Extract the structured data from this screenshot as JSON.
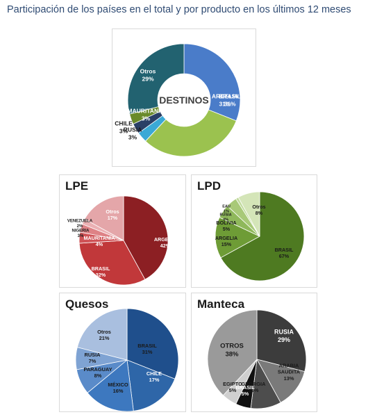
{
  "page": {
    "title": "Participación de los países en el total y por producto en los últimos 12 meses"
  },
  "chart_data": [
    {
      "id": "destinos",
      "type": "pie",
      "style": "donut",
      "title": "",
      "center_label": "DESTINOS",
      "slices": [
        {
          "label": "BRASIL",
          "value": 31,
          "display": "31%",
          "color": "#4a7cc9",
          "text_color": "#ffffff"
        },
        {
          "label": "ARGELIA",
          "value": 31,
          "display": "31%",
          "color": "#9bc24f",
          "text_color": "#ffffff"
        },
        {
          "label": "RUSIA",
          "value": 3,
          "display": "3%",
          "color": "#3aa9d6",
          "text_color": "#1a1a1a"
        },
        {
          "label": "CHILE",
          "value": 3,
          "display": "3%",
          "color": "#2a3f66",
          "text_color": "#1a1a1a"
        },
        {
          "label": "MAURITANIA",
          "value": 3,
          "display": "3%",
          "color": "#6a8a2a",
          "text_color": "#ffffff"
        },
        {
          "label": "Otros",
          "value": 29,
          "display": "29%",
          "color": "#226270",
          "text_color": "#ffffff"
        }
      ]
    },
    {
      "id": "lpe",
      "type": "pie",
      "title": "LPE",
      "slices": [
        {
          "label": "ARGELIA",
          "value": 42,
          "display": "42%",
          "color": "#8c1f23",
          "text_color": "#ffffff"
        },
        {
          "label": "BRASIL",
          "value": 32,
          "display": "32%",
          "color": "#c1383a",
          "text_color": "#ffffff"
        },
        {
          "label": "MAURITANIA",
          "value": 4,
          "display": "4%",
          "color": "#cf5256",
          "text_color": "#ffffff"
        },
        {
          "label": "NIGERIA",
          "value": 3,
          "display": "3%",
          "color": "#de8286",
          "text_color": "#1a1a1a"
        },
        {
          "label": "VENEZUELA",
          "value": 2,
          "display": "2%",
          "color": "#ebb0b3",
          "text_color": "#1a1a1a"
        },
        {
          "label": "Otros",
          "value": 17,
          "display": "17%",
          "color": "#e4a6a9",
          "text_color": "#ffffff"
        }
      ]
    },
    {
      "id": "lpd",
      "type": "pie",
      "title": "LPD",
      "slices": [
        {
          "label": "BRASIL",
          "value": 67,
          "display": "67%",
          "color": "#4e7a21",
          "text_color": "#1a1a1a"
        },
        {
          "label": "ARGELIA",
          "value": 15,
          "display": "15%",
          "color": "#6e9c36",
          "text_color": "#1a1a1a"
        },
        {
          "label": "BOLIVIA",
          "value": 5,
          "display": "5%",
          "color": "#8fb85b",
          "text_color": "#1a1a1a"
        },
        {
          "label": "RUSIA",
          "value": 4,
          "display": "4%",
          "color": "#a8c978",
          "text_color": "#1a1a1a"
        },
        {
          "label": "EAU",
          "value": 1,
          "display": "1%",
          "color": "#c2db9e",
          "text_color": "#1a1a1a"
        },
        {
          "label": "Otros",
          "value": 8,
          "display": "8%",
          "color": "#d4e5b8",
          "text_color": "#1a1a1a"
        }
      ]
    },
    {
      "id": "quesos",
      "type": "pie",
      "title": "Quesos",
      "slices": [
        {
          "label": "BRASIL",
          "value": 31,
          "display": "31%",
          "color": "#1f4f8c",
          "text_color": "#1a1a1a"
        },
        {
          "label": "CHILE",
          "value": 17,
          "display": "17%",
          "color": "#2e66a8",
          "text_color": "#ffffff"
        },
        {
          "label": "MÉXICO",
          "value": 16,
          "display": "16%",
          "color": "#3d78bf",
          "text_color": "#1a1a1a"
        },
        {
          "label": "PARAGUAY",
          "value": 8,
          "display": "8%",
          "color": "#5a8bc9",
          "text_color": "#1a1a1a"
        },
        {
          "label": "RUSIA",
          "value": 7,
          "display": "7%",
          "color": "#7fa3d3",
          "text_color": "#1a1a1a"
        },
        {
          "label": "Otros",
          "value": 21,
          "display": "21%",
          "color": "#a9bfdf",
          "text_color": "#1a1a1a"
        }
      ]
    },
    {
      "id": "manteca",
      "type": "pie",
      "title": "Manteca",
      "slices": [
        {
          "label": "RUSIA",
          "value": 29,
          "display": "29%",
          "color": "#3c3c3c",
          "text_color": "#ffffff"
        },
        {
          "label": "ARABIA SAUDITA",
          "value": 13,
          "display": "13%",
          "color": "#7a7a7a",
          "text_color": "#1a1a1a"
        },
        {
          "label": "GEORGIA",
          "value": 10,
          "display": "10%",
          "color": "#4d4d4d",
          "text_color": "#1a1a1a"
        },
        {
          "label": "BRASIL",
          "value": 5,
          "display": "5%",
          "color": "#111111",
          "text_color": "#ffffff"
        },
        {
          "label": "EGIPTO",
          "value": 5,
          "display": "5%",
          "color": "#cfcfcf",
          "text_color": "#1a1a1a"
        },
        {
          "label": "OTROS",
          "value": 38,
          "display": "38%",
          "color": "#9a9a9a",
          "text_color": "#1a1a1a"
        }
      ]
    }
  ]
}
